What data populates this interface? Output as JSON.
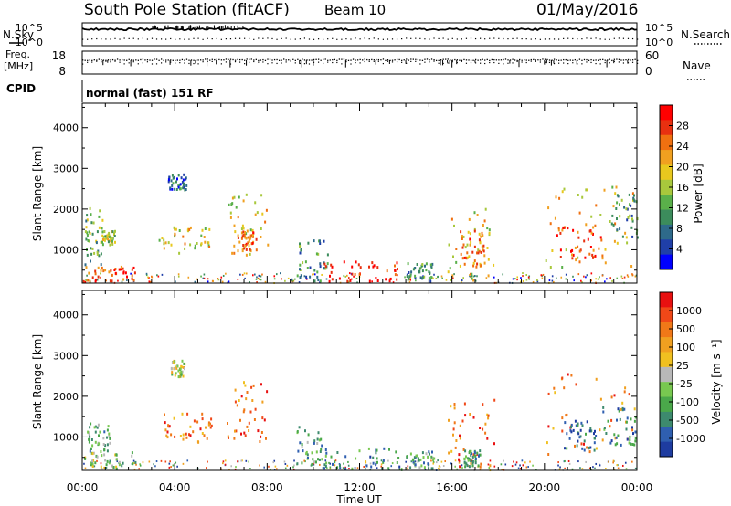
{
  "header": {
    "station": "South Pole Station (fitACF)",
    "beam": "Beam 10",
    "date": "01/May/2016"
  },
  "panel_labels": {
    "nsky": "N.Sky",
    "nsearch": "N.Search",
    "freq_line1": "Freq.",
    "freq_line2": "[MHz]",
    "nave": "Nave",
    "cpid": "CPID",
    "cpid_value": "normal (fast) 151 RF"
  },
  "noise_panel": {
    "left_ticks": [
      "10^5",
      "10^0"
    ],
    "right_ticks": [
      "10^5",
      "10^0"
    ]
  },
  "freq_panel": {
    "left_ticks": [
      "18",
      "8"
    ],
    "right_ticks": [
      "60",
      "0"
    ]
  },
  "chart_data": [
    {
      "type": "heatmap",
      "name": "power-panel",
      "ylabel": "Slant Range [km]",
      "yticks": [
        "4000",
        "3000",
        "2000",
        "1000"
      ],
      "ylim": [
        180,
        4600
      ],
      "xlim": [
        0,
        24
      ],
      "colorbar": {
        "label": "Power [dB]",
        "ticks": [
          "28",
          "24",
          "20",
          "16",
          "12",
          "8",
          "4"
        ],
        "colors": [
          "#0000ff",
          "#1f3fa8",
          "#2e6a8a",
          "#3c8c5c",
          "#5ab04a",
          "#a8c83c",
          "#e8c81e",
          "#f0a020",
          "#f07010",
          "#e83010",
          "#ff0000"
        ]
      },
      "echo_regions": [
        {
          "t0": 0.0,
          "t1": 2.4,
          "r0": 250,
          "r1": 650,
          "level": 9
        },
        {
          "t0": 0.1,
          "t1": 0.9,
          "r0": 650,
          "r1": 2050,
          "level": 4
        },
        {
          "t0": 0.8,
          "t1": 1.4,
          "r0": 1150,
          "r1": 1500,
          "level": 5
        },
        {
          "t0": 3.3,
          "t1": 5.6,
          "r0": 900,
          "r1": 1600,
          "level": 6
        },
        {
          "t0": 3.7,
          "t1": 4.5,
          "r0": 2500,
          "r1": 2900,
          "level": 2
        },
        {
          "t0": 6.2,
          "t1": 8.0,
          "r0": 900,
          "r1": 2400,
          "level": 6
        },
        {
          "t0": 6.7,
          "t1": 7.5,
          "r0": 1000,
          "r1": 1500,
          "level": 8
        },
        {
          "t0": 9.2,
          "t1": 10.6,
          "r0": 250,
          "r1": 1300,
          "level": 3
        },
        {
          "t0": 10.3,
          "t1": 13.7,
          "r0": 250,
          "r1": 750,
          "level": 10
        },
        {
          "t0": 14.0,
          "t1": 15.2,
          "r0": 250,
          "r1": 700,
          "level": 3
        },
        {
          "t0": 15.8,
          "t1": 17.8,
          "r0": 250,
          "r1": 2050,
          "level": 6
        },
        {
          "t0": 16.3,
          "t1": 17.5,
          "r0": 600,
          "r1": 1500,
          "level": 8
        },
        {
          "t0": 20.0,
          "t1": 24.0,
          "r0": 600,
          "r1": 2600,
          "level": 6
        },
        {
          "t0": 20.5,
          "t1": 22.5,
          "r0": 800,
          "r1": 1600,
          "level": 9
        },
        {
          "t0": 22.8,
          "t1": 24.0,
          "r0": 1200,
          "r1": 2400,
          "level": 3
        }
      ]
    },
    {
      "type": "heatmap",
      "name": "velocity-panel",
      "ylabel": "Slant Range [km]",
      "yticks": [
        "4000",
        "3000",
        "2000",
        "1000"
      ],
      "ylim": [
        180,
        4600
      ],
      "xlim": [
        0,
        24
      ],
      "xticks": [
        "00:00",
        "04:00",
        "08:00",
        "12:00",
        "16:00",
        "20:00",
        "00:00"
      ],
      "xlabel": "Time UT",
      "colorbar": {
        "label": "Velocity [m s⁻¹]",
        "ticks": [
          "1000",
          "500",
          "100",
          "25",
          "-25",
          "-100",
          "-500",
          "-1000"
        ],
        "colors": [
          "#1e3ca0",
          "#2f5fb0",
          "#3d8a6e",
          "#4aa84a",
          "#78c850",
          "#b8b8b8",
          "#f0c020",
          "#f0a020",
          "#f07818",
          "#f04818",
          "#e81010"
        ]
      },
      "echo_regions": [
        {
          "t0": 0.0,
          "t1": 2.4,
          "r0": 250,
          "r1": 650,
          "level": 4
        },
        {
          "t0": 0.2,
          "t1": 1.2,
          "r0": 650,
          "r1": 1400,
          "level": 3
        },
        {
          "t0": 3.3,
          "t1": 5.6,
          "r0": 900,
          "r1": 1600,
          "level": 8
        },
        {
          "t0": 3.8,
          "t1": 4.4,
          "r0": 2500,
          "r1": 2900,
          "level": 5
        },
        {
          "t0": 6.2,
          "t1": 8.0,
          "r0": 900,
          "r1": 2400,
          "level": 8
        },
        {
          "t0": 9.2,
          "t1": 10.6,
          "r0": 250,
          "r1": 1300,
          "level": 3
        },
        {
          "t0": 10.3,
          "t1": 13.7,
          "r0": 250,
          "r1": 750,
          "level": 2
        },
        {
          "t0": 14.0,
          "t1": 15.2,
          "r0": 250,
          "r1": 700,
          "level": 3
        },
        {
          "t0": 15.8,
          "t1": 17.8,
          "r0": 250,
          "r1": 2050,
          "level": 8
        },
        {
          "t0": 16.5,
          "t1": 17.2,
          "r0": 300,
          "r1": 700,
          "level": 3
        },
        {
          "t0": 20.0,
          "t1": 24.0,
          "r0": 600,
          "r1": 2600,
          "level": 8
        },
        {
          "t0": 20.8,
          "t1": 22.2,
          "r0": 700,
          "r1": 1500,
          "level": 1
        },
        {
          "t0": 22.5,
          "t1": 24.0,
          "r0": 800,
          "r1": 1800,
          "level": 2
        }
      ]
    }
  ]
}
